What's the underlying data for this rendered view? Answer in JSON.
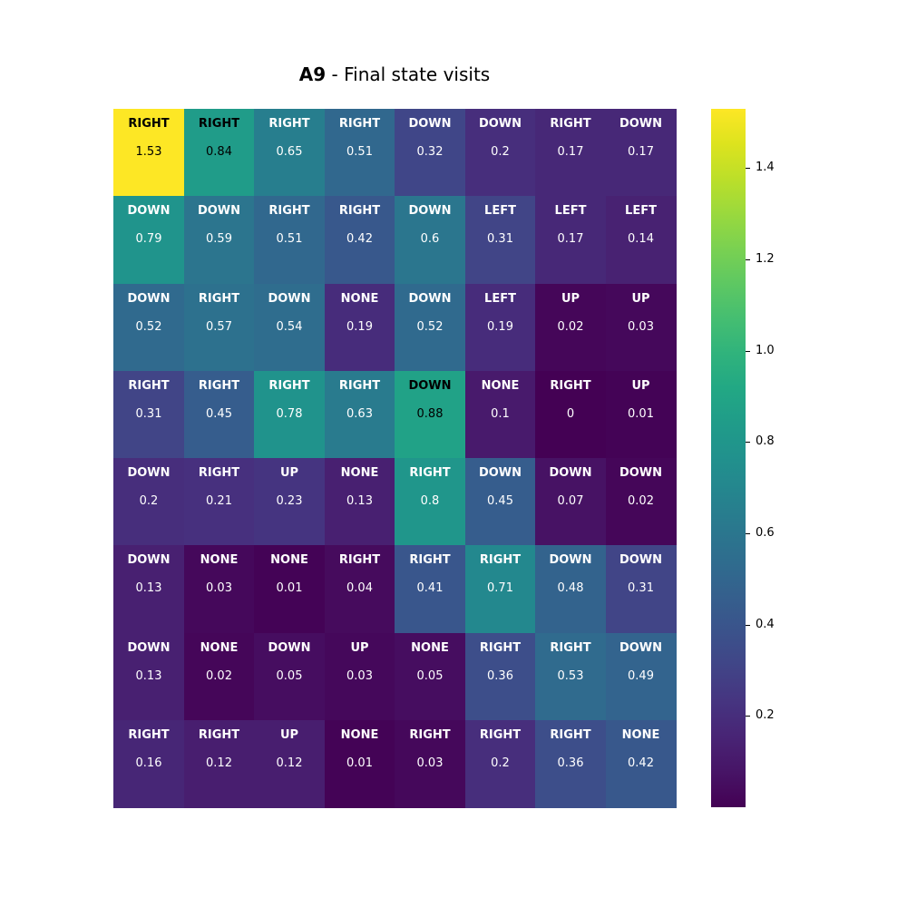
{
  "title": {
    "bold": "A9",
    "rest": " - Final state visits"
  },
  "chart_data": {
    "type": "heatmap",
    "title": "A9 - Final state visits",
    "colormap": "viridis",
    "vmin": 0,
    "vmax": 1.53,
    "colorbar_ticks": [
      0.2,
      0.4,
      0.6,
      0.8,
      1.0,
      1.2,
      1.4
    ],
    "colorbar_tick_labels": [
      "0.2",
      "0.4",
      "0.6",
      "0.8",
      "1.0",
      "1.2",
      "1.4"
    ],
    "rows": 8,
    "cols": 8,
    "values": [
      [
        1.53,
        0.84,
        0.65,
        0.51,
        0.32,
        0.2,
        0.17,
        0.17
      ],
      [
        0.79,
        0.59,
        0.51,
        0.42,
        0.6,
        0.31,
        0.17,
        0.14
      ],
      [
        0.52,
        0.57,
        0.54,
        0.19,
        0.52,
        0.19,
        0.02,
        0.03
      ],
      [
        0.31,
        0.45,
        0.78,
        0.63,
        0.88,
        0.1,
        0,
        0.01
      ],
      [
        0.2,
        0.21,
        0.23,
        0.13,
        0.8,
        0.45,
        0.07,
        0.02
      ],
      [
        0.13,
        0.03,
        0.01,
        0.04,
        0.41,
        0.71,
        0.48,
        0.31
      ],
      [
        0.13,
        0.02,
        0.05,
        0.03,
        0.05,
        0.36,
        0.53,
        0.49
      ],
      [
        0.16,
        0.12,
        0.12,
        0.01,
        0.03,
        0.2,
        0.36,
        0.42
      ]
    ],
    "actions": [
      [
        "RIGHT",
        "RIGHT",
        "RIGHT",
        "RIGHT",
        "DOWN",
        "DOWN",
        "RIGHT",
        "DOWN"
      ],
      [
        "DOWN",
        "DOWN",
        "RIGHT",
        "RIGHT",
        "DOWN",
        "LEFT",
        "LEFT",
        "LEFT"
      ],
      [
        "DOWN",
        "RIGHT",
        "DOWN",
        "NONE",
        "DOWN",
        "LEFT",
        "UP",
        "UP"
      ],
      [
        "RIGHT",
        "RIGHT",
        "RIGHT",
        "RIGHT",
        "DOWN",
        "NONE",
        "RIGHT",
        "UP"
      ],
      [
        "DOWN",
        "RIGHT",
        "UP",
        "NONE",
        "RIGHT",
        "DOWN",
        "DOWN",
        "DOWN"
      ],
      [
        "DOWN",
        "NONE",
        "NONE",
        "RIGHT",
        "RIGHT",
        "RIGHT",
        "DOWN",
        "DOWN"
      ],
      [
        "DOWN",
        "NONE",
        "DOWN",
        "UP",
        "NONE",
        "RIGHT",
        "RIGHT",
        "DOWN"
      ],
      [
        "RIGHT",
        "RIGHT",
        "UP",
        "NONE",
        "RIGHT",
        "RIGHT",
        "RIGHT",
        "NONE"
      ]
    ],
    "value_labels": [
      [
        "1.53",
        "0.84",
        "0.65",
        "0.51",
        "0.32",
        "0.2",
        "0.17",
        "0.17"
      ],
      [
        "0.79",
        "0.59",
        "0.51",
        "0.42",
        "0.6",
        "0.31",
        "0.17",
        "0.14"
      ],
      [
        "0.52",
        "0.57",
        "0.54",
        "0.19",
        "0.52",
        "0.19",
        "0.02",
        "0.03"
      ],
      [
        "0.31",
        "0.45",
        "0.78",
        "0.63",
        "0.88",
        "0.1",
        "0",
        "0.01"
      ],
      [
        "0.2",
        "0.21",
        "0.23",
        "0.13",
        "0.8",
        "0.45",
        "0.07",
        "0.02"
      ],
      [
        "0.13",
        "0.03",
        "0.01",
        "0.04",
        "0.41",
        "0.71",
        "0.48",
        "0.31"
      ],
      [
        "0.13",
        "0.02",
        "0.05",
        "0.03",
        "0.05",
        "0.36",
        "0.53",
        "0.49"
      ],
      [
        "0.16",
        "0.12",
        "0.12",
        "0.01",
        "0.03",
        "0.2",
        "0.36",
        "0.42"
      ]
    ]
  }
}
